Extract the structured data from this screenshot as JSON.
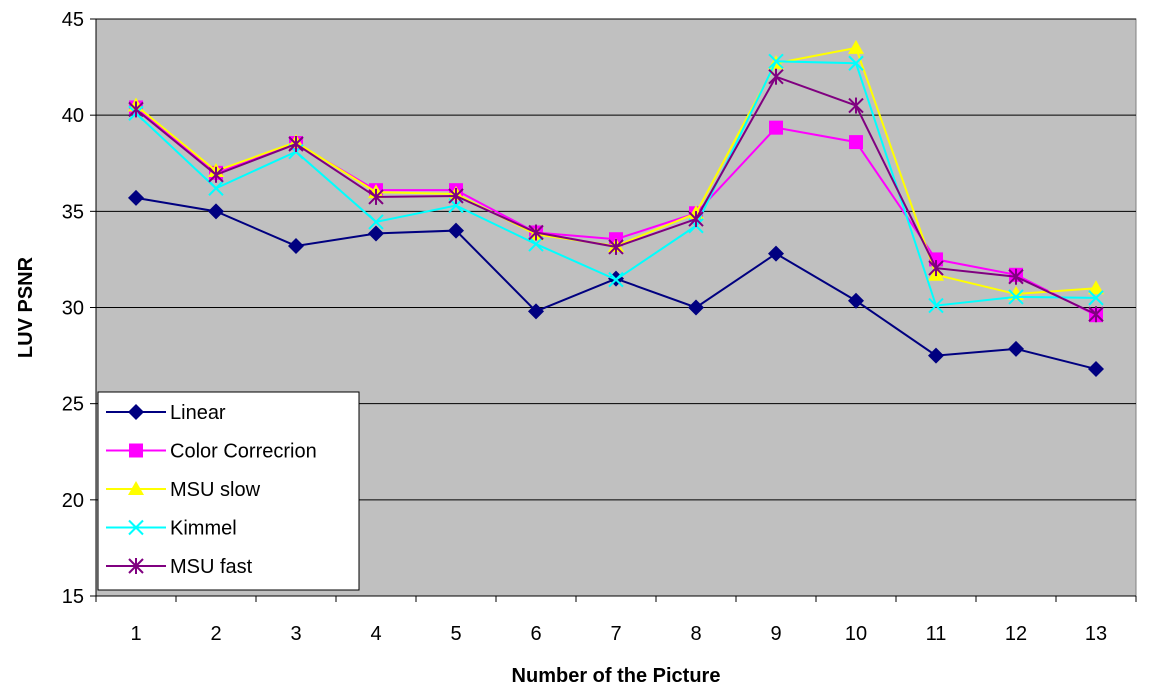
{
  "chart_data": {
    "type": "line",
    "title": "",
    "xlabel": "Number of the Picture",
    "ylabel": "LUV PSNR",
    "categories": [
      "1",
      "2",
      "3",
      "4",
      "5",
      "6",
      "7",
      "8",
      "9",
      "10",
      "11",
      "12",
      "13"
    ],
    "ylim": [
      15,
      45
    ],
    "yticks": [
      15,
      20,
      25,
      30,
      35,
      40,
      45
    ],
    "grid": true,
    "legend_position": "bottom-left",
    "plot_background": "#c0c0c0",
    "series": [
      {
        "name": "Linear",
        "color": "#000080",
        "marker": "diamond",
        "values": [
          35.7,
          35.0,
          33.2,
          33.85,
          34.0,
          29.8,
          31.5,
          30.0,
          32.8,
          30.35,
          27.5,
          27.85,
          26.8
        ]
      },
      {
        "name": "Color Correcrion",
        "color": "#ff00ff",
        "marker": "square",
        "values": [
          40.4,
          37.0,
          38.55,
          36.1,
          36.1,
          33.9,
          33.55,
          34.9,
          39.35,
          38.6,
          32.5,
          31.7,
          29.6
        ]
      },
      {
        "name": "MSU slow",
        "color": "#ffff00",
        "marker": "triangle",
        "values": [
          40.5,
          37.1,
          38.6,
          36.0,
          35.9,
          33.8,
          33.2,
          34.9,
          42.7,
          43.5,
          31.7,
          30.7,
          31.0
        ]
      },
      {
        "name": "Kimmel",
        "color": "#00ffff",
        "marker": "x",
        "values": [
          40.1,
          36.2,
          38.1,
          34.45,
          35.3,
          33.3,
          31.45,
          34.25,
          42.8,
          42.7,
          30.1,
          30.55,
          30.5
        ]
      },
      {
        "name": "MSU fast",
        "color": "#800080",
        "marker": "star",
        "values": [
          40.3,
          36.9,
          38.5,
          35.75,
          35.8,
          33.9,
          33.15,
          34.6,
          42.0,
          40.5,
          32.05,
          31.6,
          29.65
        ]
      }
    ]
  }
}
